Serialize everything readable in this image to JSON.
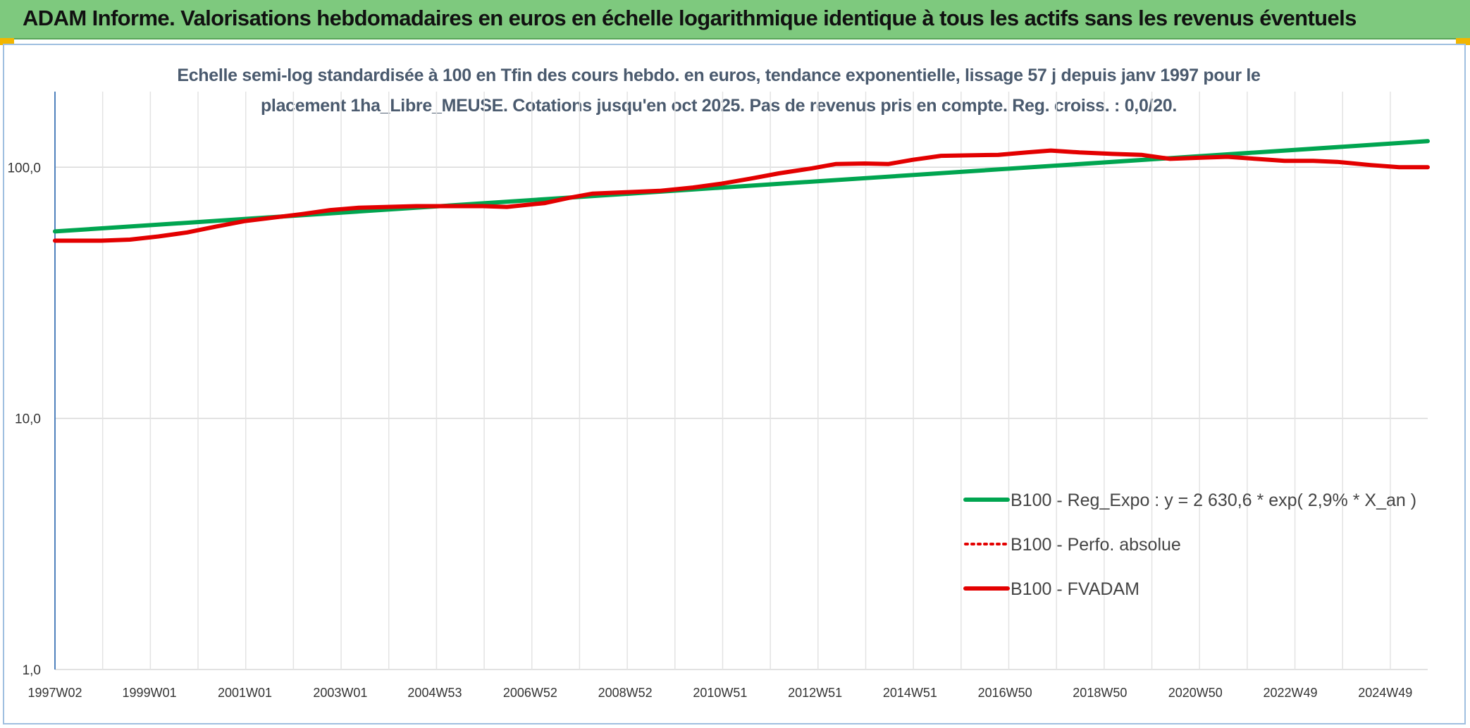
{
  "banner": {
    "title": "ADAM Informe. Valorisations hebdomadaires en euros en échelle logarithmique identique à tous les actifs sans les revenus éventuels",
    "accent": "#7ec97e"
  },
  "chart_data": {
    "type": "line",
    "title_lines": [
      "Echelle semi-log standardisée à 100 en Tfin des cours hebdo. en euros, tendance exponentielle, lissage 57 j depuis janv 1997 pour le",
      "placement 1ha_Libre_MEUSE. Cotations jusqu'en oct 2025. Pas de revenus pris en compte. Reg. croiss. : 0,0/20."
    ],
    "yscale": "log",
    "ylim": [
      1,
      200
    ],
    "yticks": [
      {
        "value": 1,
        "label": "1,0"
      },
      {
        "value": 10,
        "label": "10,0"
      },
      {
        "value": 100,
        "label": "100,0"
      }
    ],
    "x_start": 1997.03,
    "x_end": 2025.8,
    "xticks": [
      {
        "label": "1997W02",
        "year": 1997.03
      },
      {
        "label": "1999W01",
        "year": 1999.01
      },
      {
        "label": "2001W01",
        "year": 2001.01
      },
      {
        "label": "2003W01",
        "year": 2003.01
      },
      {
        "label": "2004W53",
        "year": 2004.99
      },
      {
        "label": "2006W52",
        "year": 2006.99
      },
      {
        "label": "2008W52",
        "year": 2008.98
      },
      {
        "label": "2010W51",
        "year": 2010.97
      },
      {
        "label": "2012W51",
        "year": 2012.96
      },
      {
        "label": "2014W51",
        "year": 2014.95
      },
      {
        "label": "2016W50",
        "year": 2016.94
      },
      {
        "label": "2018W50",
        "year": 2018.93
      },
      {
        "label": "2020W50",
        "year": 2020.93
      },
      {
        "label": "2022W49",
        "year": 2022.92
      },
      {
        "label": "2024W49",
        "year": 2024.91
      }
    ],
    "grid": true,
    "legend_position": "lower-right",
    "series": [
      {
        "name": "B100 - Reg_Expo : y = 2 630,6 * exp( 2,9% *  X_an )",
        "color": "#00a550",
        "style": "solid",
        "points": [
          [
            1997.03,
            55.5
          ],
          [
            2025.8,
            127
          ]
        ]
      },
      {
        "name": "B100 - Perfo. absolue",
        "color": "#e30000",
        "style": "dotted",
        "points": []
      },
      {
        "name": "B100 - FVADAM",
        "color": "#e30000",
        "style": "solid",
        "points": [
          [
            1997.03,
            51
          ],
          [
            1998.0,
            51
          ],
          [
            1998.6,
            51.5
          ],
          [
            1999.2,
            53
          ],
          [
            1999.8,
            55
          ],
          [
            2000.4,
            58
          ],
          [
            2001.0,
            61
          ],
          [
            2001.6,
            63
          ],
          [
            2002.2,
            65
          ],
          [
            2002.8,
            67.5
          ],
          [
            2003.4,
            69
          ],
          [
            2004.0,
            69.5
          ],
          [
            2004.6,
            70
          ],
          [
            2005.4,
            70
          ],
          [
            2006.0,
            70
          ],
          [
            2006.5,
            69.5
          ],
          [
            2007.3,
            72
          ],
          [
            2007.8,
            75.5
          ],
          [
            2008.3,
            78.5
          ],
          [
            2009.0,
            79.5
          ],
          [
            2009.7,
            80.5
          ],
          [
            2010.4,
            83
          ],
          [
            2011.0,
            86
          ],
          [
            2011.6,
            90
          ],
          [
            2012.2,
            94.5
          ],
          [
            2012.9,
            99
          ],
          [
            2013.4,
            103
          ],
          [
            2014.0,
            103.5
          ],
          [
            2014.5,
            103
          ],
          [
            2015.0,
            107
          ],
          [
            2015.6,
            111
          ],
          [
            2016.2,
            111.5
          ],
          [
            2016.8,
            112
          ],
          [
            2017.4,
            114.5
          ],
          [
            2017.9,
            116.5
          ],
          [
            2018.5,
            114.5
          ],
          [
            2019.2,
            113
          ],
          [
            2019.8,
            112
          ],
          [
            2020.4,
            108
          ],
          [
            2021.0,
            109
          ],
          [
            2021.6,
            110
          ],
          [
            2022.2,
            108
          ],
          [
            2022.8,
            106
          ],
          [
            2023.4,
            106
          ],
          [
            2023.9,
            105
          ],
          [
            2024.6,
            102
          ],
          [
            2025.2,
            100
          ],
          [
            2025.8,
            100
          ]
        ]
      }
    ]
  }
}
